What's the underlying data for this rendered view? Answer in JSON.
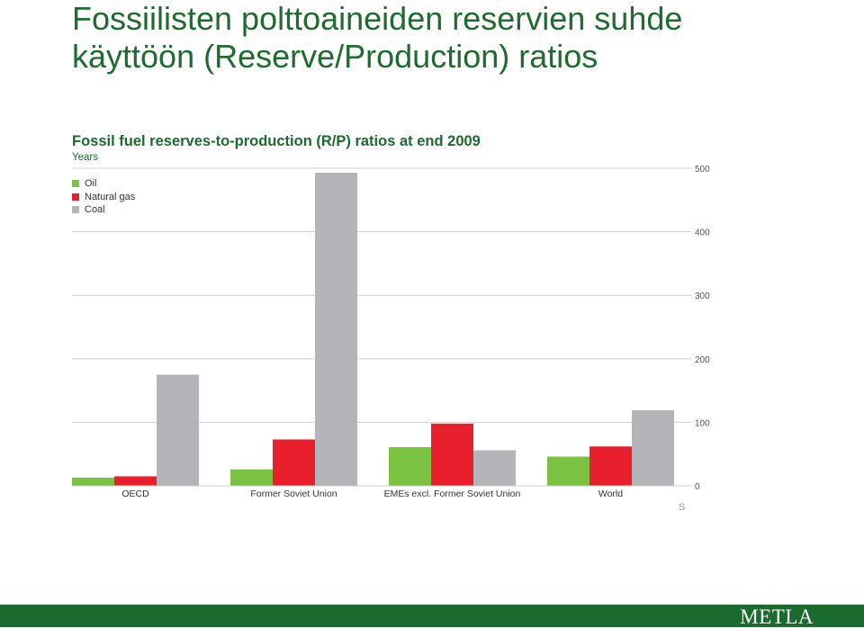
{
  "slide": {
    "title_line1": "Fossiilisten polttoaineiden reservien suhde",
    "title_line2": "käyttöön (Reserve/Production) ratios",
    "logo": "METLA"
  },
  "colors": {
    "title": "#1f6b2f",
    "chart_title": "#1a6b2d",
    "oil": "#7cc242",
    "natural_gas": "#e8202e",
    "coal": "#b3b3b8",
    "footer": "#1a6b2d"
  },
  "chart_data": {
    "type": "bar",
    "title": "Fossil fuel reserves-to-production (R/P) ratios at end 2009",
    "ylabel": "Years",
    "categories": [
      "OECD",
      "Former Soviet Union",
      "EMEs excl. Former Soviet Union",
      "World"
    ],
    "series": [
      {
        "name": "Oil",
        "color": "#7cc242",
        "values": [
          13,
          26,
          61,
          46
        ]
      },
      {
        "name": "Natural gas",
        "color": "#e8202e",
        "values": [
          15,
          73,
          98,
          62
        ]
      },
      {
        "name": "Coal",
        "color": "#b3b3b8",
        "values": [
          175,
          493,
          56,
          119
        ]
      }
    ],
    "ylim": [
      0,
      500
    ],
    "yticks": [
      "0",
      "100",
      "200",
      "300",
      "400",
      "500"
    ],
    "y_axis_side": "right",
    "grid": true,
    "legend_position": "top-left",
    "cropped_text": "S"
  }
}
